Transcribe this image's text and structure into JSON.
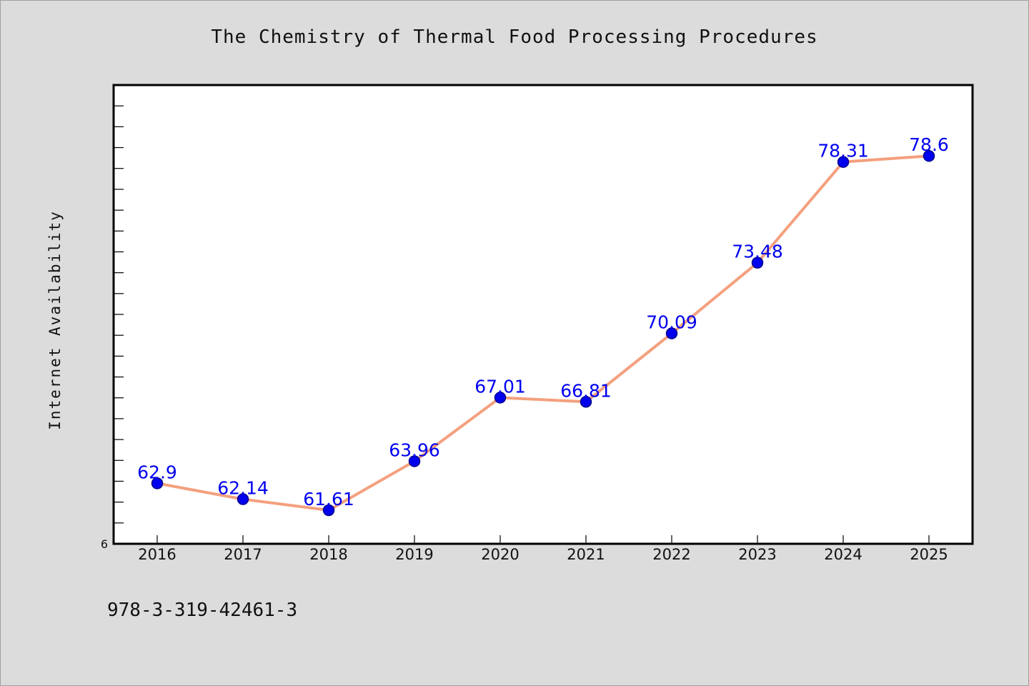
{
  "chart_data": {
    "type": "line",
    "title": "The Chemistry of Thermal Food Processing Procedures",
    "xlabel": "",
    "ylabel": "Internet Availability",
    "categories": [
      "2016",
      "2017",
      "2018",
      "2019",
      "2020",
      "2021",
      "2022",
      "2023",
      "2024",
      "2025"
    ],
    "series": [
      {
        "values": [
          62.9,
          62.14,
          61.61,
          63.96,
          67.01,
          66.81,
          70.09,
          73.48,
          78.31,
          78.6
        ],
        "labels": [
          "62.9",
          "62.14",
          "61.61",
          "63.96",
          "67.01",
          "66.81",
          "70.09",
          "73.48",
          "78.31",
          "78.6"
        ]
      }
    ],
    "ylim": [
      60,
      82
    ],
    "y_tick_labels": [
      {
        "value": 60,
        "label": "6"
      }
    ],
    "y_minor_tick_step": 1,
    "grid": false,
    "legend": "none",
    "colors": {
      "line": "#f4a07e",
      "marker": "#0000ee",
      "marker_edge": "#00008b",
      "data_label": "#0000ee",
      "axis": "#000000",
      "plot_bg": "#ffffff",
      "page_bg": "#dcdcdc"
    }
  },
  "footer": {
    "isbn": "978-3-319-42461-3"
  }
}
